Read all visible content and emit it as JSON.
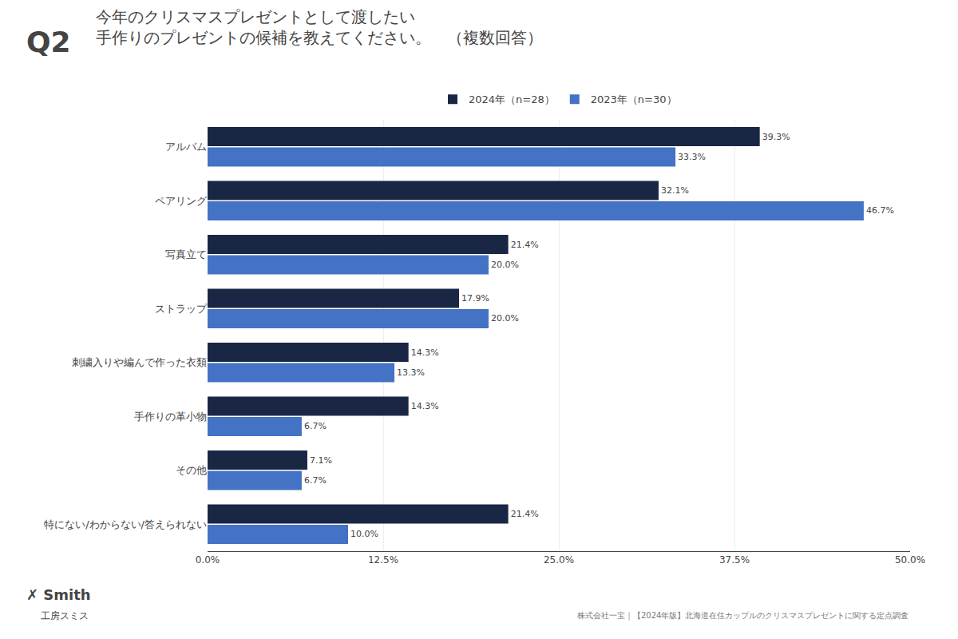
{
  "chart_data": {
    "type": "bar",
    "orientation": "horizontal",
    "title": "今年のクリスマスプレゼントとして渡したい",
    "subtitle": "手作りのプレゼントの候補を教えてください。　（複数回答）",
    "annotations": [
      "Q2",
      "✗ Smith",
      "工房スミス",
      "株式会社一宝｜【2024年版】北海道在住カップルのクリスマスプレゼントに関する定点調査"
    ],
    "categories": [
      "アルバム",
      "ペアリング",
      "写真立て",
      "ストラップ",
      "刺繍入りや編んで作った衣類",
      "手作りの革小物",
      "その他",
      "特にない/わからない/答えられない"
    ],
    "series": [
      {
        "name": "2024年（n=28）",
        "color": "#1a2744",
        "values": [
          39.3,
          32.1,
          21.4,
          17.9,
          14.3,
          14.3,
          7.1,
          21.4
        ],
        "value_labels": [
          "39.3%",
          "32.1%",
          "21.4%",
          "17.9%",
          "14.3%",
          "14.3%",
          "7.1%",
          "21.4%"
        ]
      },
      {
        "name": "2023年（n=30）",
        "color": "#4472c4",
        "values": [
          33.3,
          46.7,
          20.0,
          20.0,
          13.3,
          6.7,
          6.7,
          10.0
        ],
        "value_labels": [
          "33.3%",
          "46.7%",
          "20.0%",
          "20.0%",
          "13.3%",
          "6.7%",
          "6.7%",
          "10.0%"
        ]
      }
    ],
    "xlim": [
      0,
      50
    ],
    "xticks": [
      {
        "value": 0,
        "label": "0.0%"
      },
      {
        "value": 12.5,
        "label": "12.5%"
      },
      {
        "value": 25.0,
        "label": "25.0%"
      },
      {
        "value": 37.5,
        "label": "37.5%"
      },
      {
        "value": 50.0,
        "label": "50.0%"
      }
    ],
    "grid": true,
    "legend": "top",
    "data_labels": true
  }
}
